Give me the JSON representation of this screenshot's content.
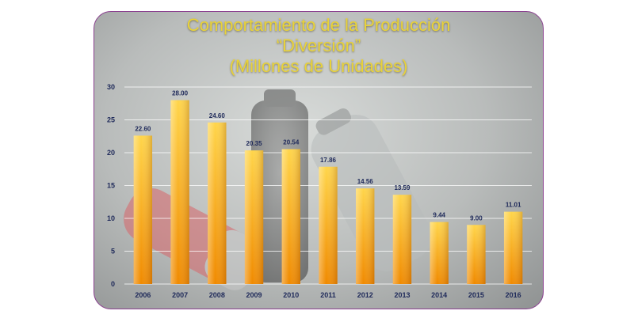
{
  "chart_data": {
    "type": "bar",
    "title_lines": [
      "Comportamiento de la Producción",
      "“Diversión”",
      "(Millones de Unidades)"
    ],
    "categories": [
      "2006",
      "2007",
      "2008",
      "2009",
      "2010",
      "2011",
      "2012",
      "2013",
      "2014",
      "2015",
      "2016"
    ],
    "values": [
      22.6,
      28.0,
      24.6,
      20.35,
      20.54,
      17.86,
      14.56,
      13.59,
      9.44,
      9.0,
      11.01
    ],
    "value_labels": [
      "22.60",
      "28.00",
      "24.60",
      "20.35",
      "20.54",
      "17.86",
      "14.56",
      "13.59",
      "9.44",
      "9.00",
      "11.01"
    ],
    "yticks": [
      "0",
      "5",
      "10",
      "15",
      "20",
      "25",
      "30"
    ],
    "ylim": [
      0,
      30
    ],
    "grid": true,
    "colors": {
      "bar_top": "#ffd54a",
      "bar_bottom": "#f08a00",
      "title": "#e8d23a",
      "value_label": "#1f2a5a",
      "axis_text": "#1f2a5a"
    }
  }
}
